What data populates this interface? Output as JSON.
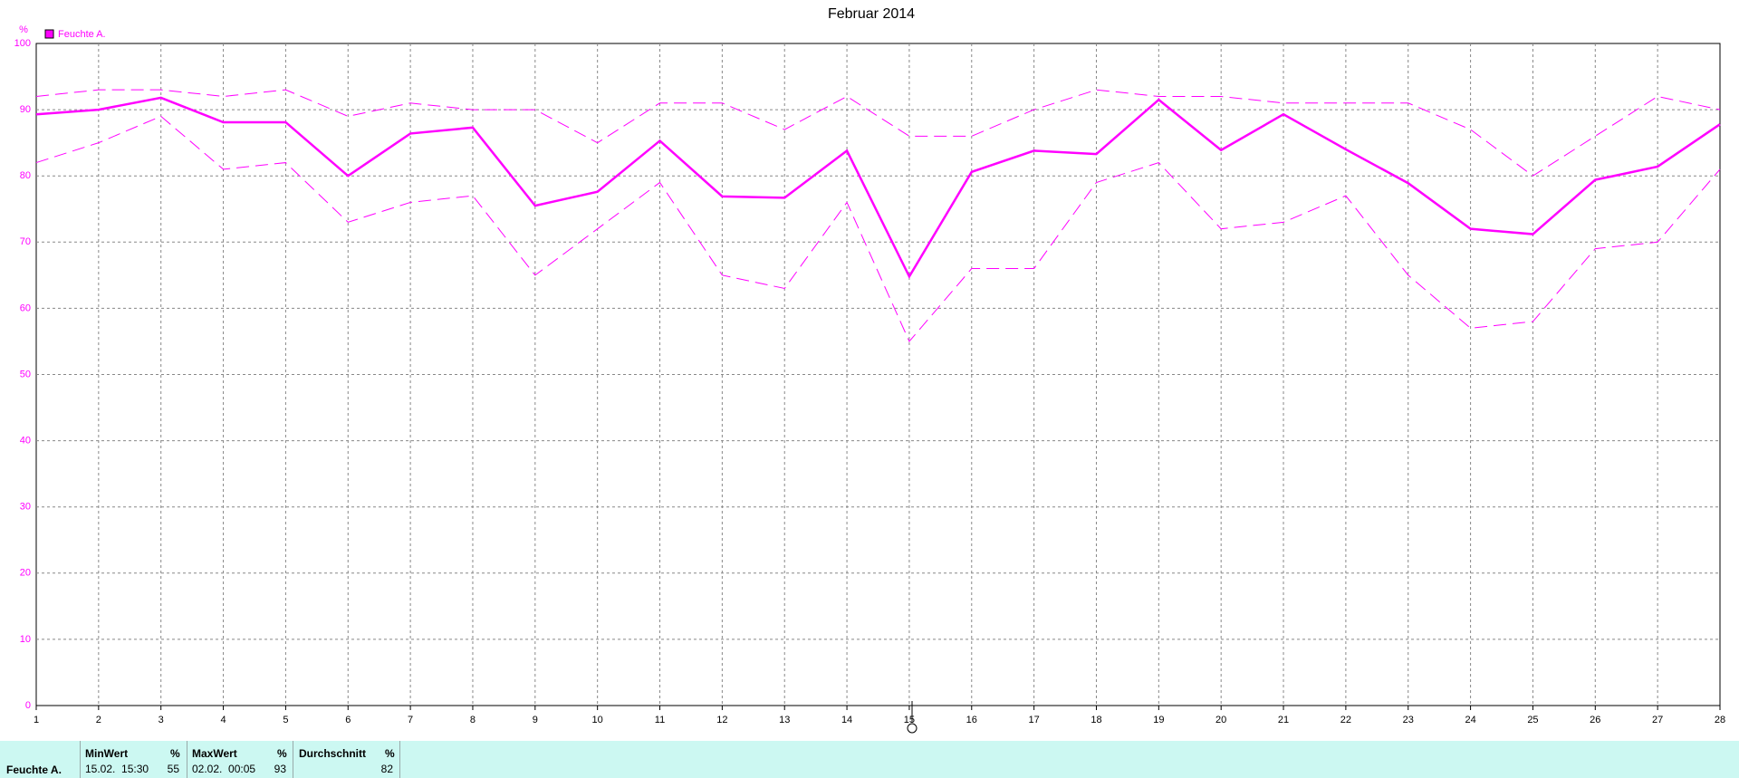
{
  "chart_data": {
    "type": "line",
    "title": "Februar 2014",
    "y_label": "%",
    "categories": [
      "1",
      "2",
      "3",
      "4",
      "5",
      "6",
      "7",
      "8",
      "9",
      "10",
      "11",
      "12",
      "13",
      "14",
      "15",
      "16",
      "17",
      "18",
      "19",
      "20",
      "21",
      "22",
      "23",
      "24",
      "25",
      "26",
      "27",
      "28"
    ],
    "series": [
      {
        "name": "Feuchte A.",
        "color": "#ff00ff",
        "dashed": false,
        "values": [
          89.3,
          90,
          91.8,
          88.1,
          88.1,
          80,
          86.4,
          87.3,
          75.5,
          77.6,
          85.3,
          76.9,
          76.7,
          83.8,
          64.8,
          80.6,
          83.8,
          83.3,
          91.5,
          83.9,
          89.3,
          84,
          78.9,
          72,
          71.2,
          79.4,
          81.4,
          87.8
        ]
      },
      {
        "color": "#ff00ff",
        "dashed": true,
        "values": [
          92,
          93,
          93,
          92,
          93,
          89,
          91,
          90,
          90,
          85,
          91,
          91,
          87,
          92,
          86,
          86,
          90,
          93,
          92,
          92,
          91,
          91,
          91,
          87,
          80,
          86,
          92,
          90
        ]
      },
      {
        "color": "#ff00ff",
        "dashed": true,
        "values": [
          82,
          85,
          89,
          81,
          82,
          73,
          76,
          77,
          65,
          72,
          79,
          65,
          63,
          76,
          55,
          66,
          66,
          79,
          82,
          72,
          73,
          77,
          65,
          57,
          58,
          69,
          70,
          81
        ]
      }
    ],
    "ylim": [
      0,
      100
    ],
    "yticks": [
      0,
      10,
      20,
      30,
      40,
      50,
      60,
      70,
      80,
      90,
      100
    ],
    "grid": true
  },
  "table": {
    "header": [
      "MinWert",
      "%",
      "MaxWert",
      "%",
      "Durchschnitt",
      "%"
    ],
    "row": {
      "label": "Feuchte A.",
      "min_time": "15.02.  15:30",
      "min": "55",
      "max_time": "02.02.  00:05",
      "max": "93",
      "avg": "82"
    }
  }
}
